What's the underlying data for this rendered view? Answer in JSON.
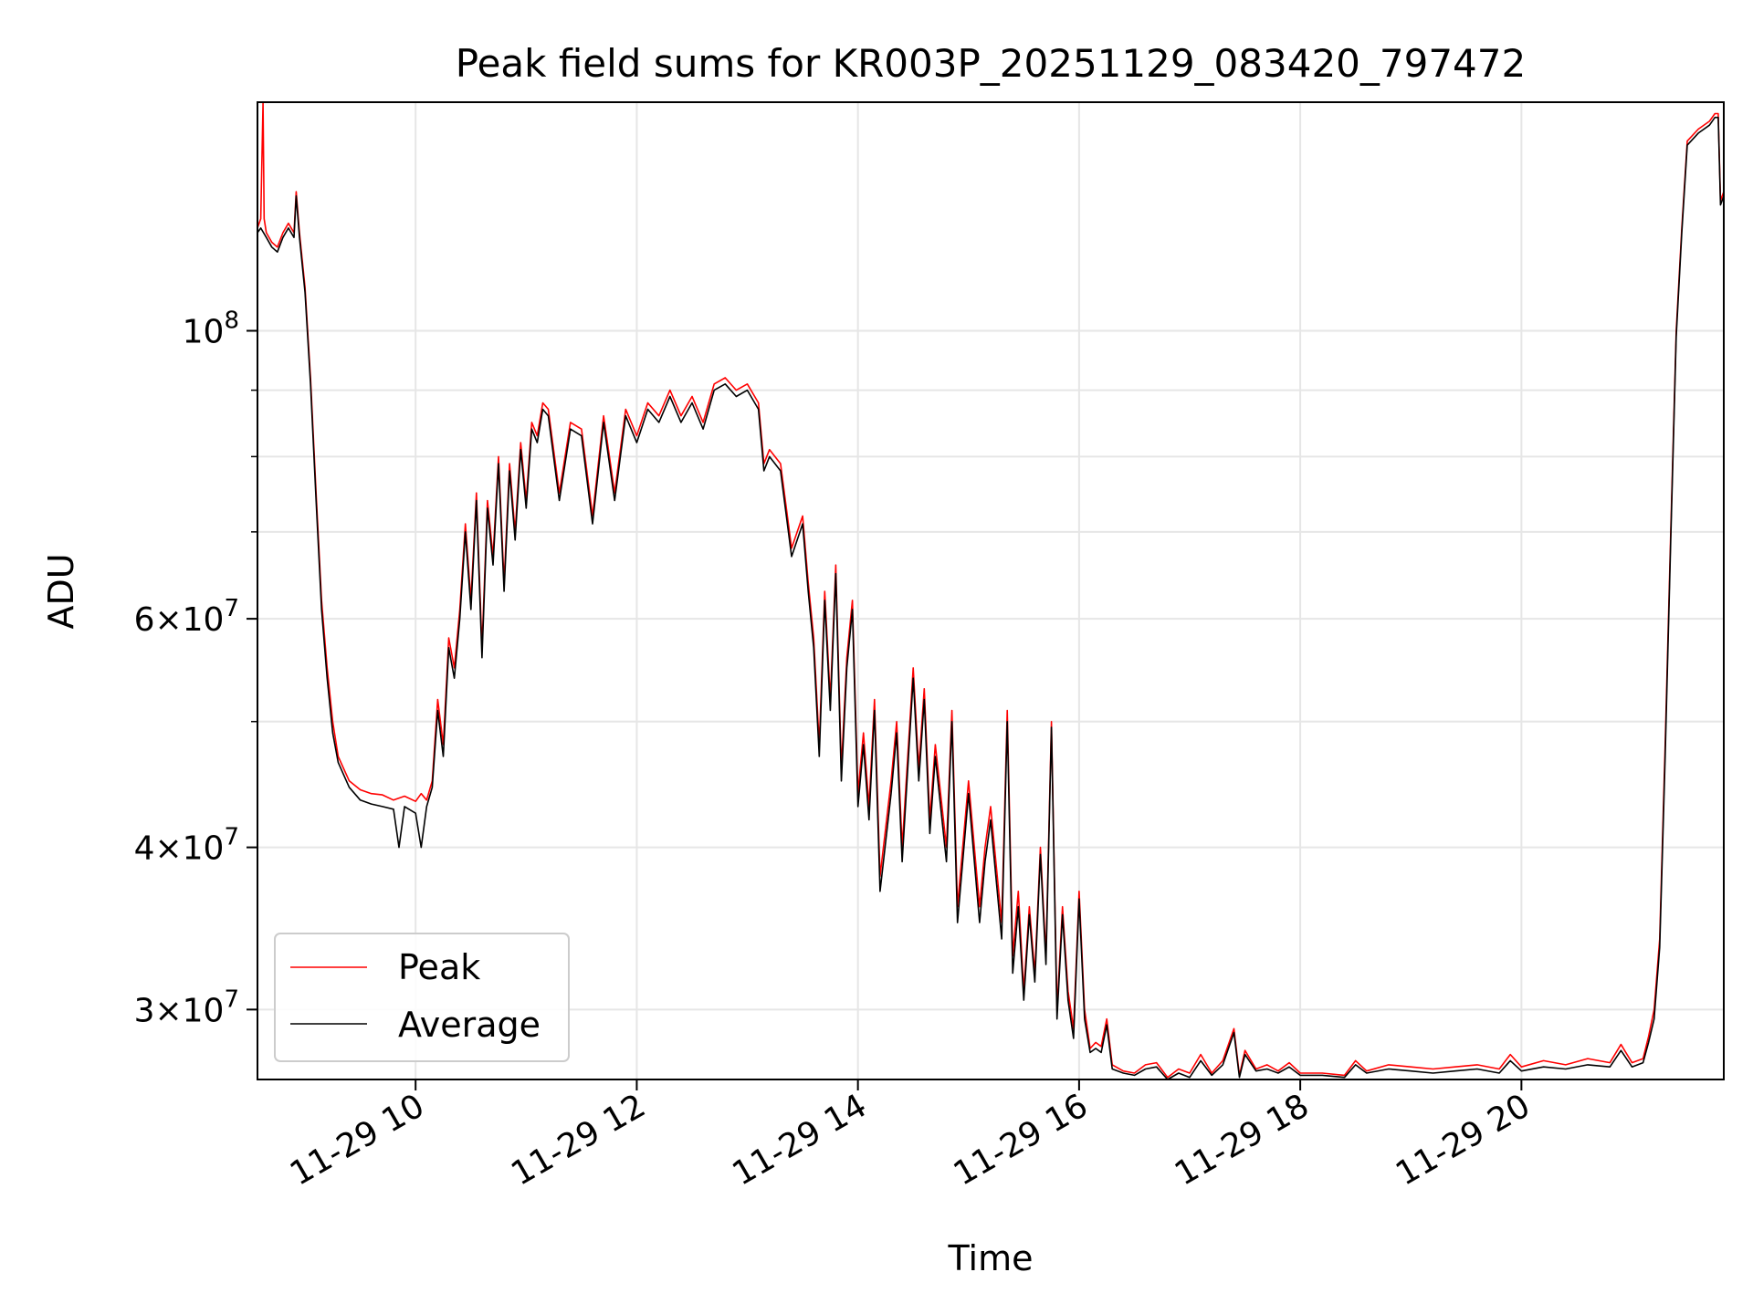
{
  "chart_data": {
    "type": "line",
    "title": "Peak field sums for KR003P_20251129_083420_797472",
    "xlabel": "Time",
    "ylabel": "ADU",
    "yscale": "log",
    "grid": true,
    "legend_position": "lower-left",
    "xlim_hours": [
      8.57,
      21.83
    ],
    "ylim": [
      26500000,
      150000000
    ],
    "x_ticks": [
      {
        "hour": 10,
        "label": "11-29 10"
      },
      {
        "hour": 12,
        "label": "11-29 12"
      },
      {
        "hour": 14,
        "label": "11-29 14"
      },
      {
        "hour": 16,
        "label": "11-29 16"
      },
      {
        "hour": 18,
        "label": "11-29 18"
      },
      {
        "hour": 20,
        "label": "11-29 20"
      }
    ],
    "y_ticks": [
      {
        "value": 30000000,
        "base": "3",
        "exponent": "7"
      },
      {
        "value": 40000000,
        "base": "4",
        "exponent": "7"
      },
      {
        "value": 60000000,
        "base": "6",
        "exponent": "7"
      },
      {
        "value": 100000000,
        "base": "",
        "exponent": "8"
      }
    ],
    "y_minor_ticks": [
      50000000,
      70000000,
      80000000,
      90000000
    ],
    "series": [
      {
        "name": "Peak",
        "color": "#ff0000",
        "x_hours": [
          8.57,
          8.6,
          8.62,
          8.63,
          8.65,
          8.7,
          8.75,
          8.8,
          8.85,
          8.9,
          8.92,
          8.95,
          9.0,
          9.05,
          9.1,
          9.15,
          9.2,
          9.25,
          9.3,
          9.4,
          9.5,
          9.6,
          9.7,
          9.8,
          9.9,
          10.0,
          10.05,
          10.1,
          10.15,
          10.2,
          10.25,
          10.3,
          10.35,
          10.4,
          10.45,
          10.5,
          10.55,
          10.6,
          10.65,
          10.7,
          10.75,
          10.8,
          10.85,
          10.9,
          10.95,
          11.0,
          11.05,
          11.1,
          11.15,
          11.2,
          11.3,
          11.4,
          11.5,
          11.6,
          11.7,
          11.8,
          11.9,
          12.0,
          12.1,
          12.2,
          12.3,
          12.4,
          12.5,
          12.6,
          12.7,
          12.8,
          12.9,
          13.0,
          13.1,
          13.15,
          13.2,
          13.3,
          13.4,
          13.5,
          13.55,
          13.6,
          13.65,
          13.7,
          13.75,
          13.8,
          13.85,
          13.9,
          13.95,
          14.0,
          14.05,
          14.1,
          14.15,
          14.2,
          14.3,
          14.35,
          14.4,
          14.5,
          14.55,
          14.6,
          14.65,
          14.7,
          14.8,
          14.85,
          14.9,
          15.0,
          15.1,
          15.15,
          15.2,
          15.3,
          15.35,
          15.4,
          15.45,
          15.5,
          15.55,
          15.6,
          15.65,
          15.7,
          15.75,
          15.8,
          15.85,
          15.9,
          15.95,
          16.0,
          16.05,
          16.1,
          16.15,
          16.2,
          16.25,
          16.3,
          16.4,
          16.5,
          16.6,
          16.7,
          16.8,
          16.9,
          17.0,
          17.1,
          17.2,
          17.3,
          17.4,
          17.45,
          17.5,
          17.6,
          17.7,
          17.8,
          17.9,
          18.0,
          18.2,
          18.4,
          18.5,
          18.6,
          18.8,
          19.0,
          19.2,
          19.4,
          19.6,
          19.8,
          19.9,
          20.0,
          20.2,
          20.4,
          20.6,
          20.8,
          20.9,
          21.0,
          21.1,
          21.15,
          21.2,
          21.25,
          21.3,
          21.35,
          21.4,
          21.45,
          21.5,
          21.6,
          21.7,
          21.75,
          21.78,
          21.8,
          21.83
        ],
        "values": [
          120000000,
          122000000,
          150000000,
          122000000,
          119000000,
          117000000,
          116000000,
          119000000,
          121000000,
          119000000,
          128000000,
          119000000,
          108000000,
          92000000,
          75000000,
          62000000,
          55000000,
          50000000,
          47000000,
          45000000,
          44300000,
          44000000,
          43900000,
          43500000,
          43800000,
          43400000,
          44000000,
          43500000,
          45000000,
          52000000,
          48000000,
          58000000,
          55000000,
          61000000,
          71000000,
          62000000,
          75000000,
          57000000,
          74000000,
          67000000,
          80000000,
          64000000,
          79000000,
          70000000,
          82000000,
          74000000,
          85000000,
          83000000,
          88000000,
          87000000,
          75000000,
          85000000,
          84000000,
          72000000,
          86000000,
          75000000,
          87000000,
          83000000,
          88000000,
          86000000,
          90000000,
          86000000,
          89000000,
          85000000,
          91000000,
          92000000,
          90000000,
          91000000,
          88000000,
          79000000,
          81000000,
          79000000,
          68000000,
          72000000,
          64000000,
          58000000,
          48000000,
          63000000,
          52000000,
          66000000,
          46000000,
          56000000,
          62000000,
          44000000,
          49000000,
          43000000,
          52000000,
          38000000,
          45000000,
          50000000,
          40000000,
          55000000,
          46000000,
          53000000,
          42000000,
          48000000,
          40000000,
          51000000,
          36000000,
          45000000,
          36000000,
          40000000,
          43000000,
          35000000,
          51000000,
          33000000,
          37000000,
          31000000,
          36000000,
          32000000,
          40000000,
          33000000,
          50000000,
          30000000,
          36000000,
          31000000,
          29000000,
          37000000,
          30000000,
          28000000,
          28300000,
          28100000,
          29500000,
          27200000,
          26900000,
          26800000,
          27200000,
          27300000,
          26600000,
          27000000,
          26800000,
          27700000,
          26800000,
          27400000,
          29000000,
          26700000,
          27900000,
          27000000,
          27200000,
          26900000,
          27300000,
          26800000,
          26800000,
          26700000,
          27400000,
          26900000,
          27200000,
          27100000,
          27000000,
          27100000,
          27200000,
          27000000,
          27700000,
          27100000,
          27400000,
          27200000,
          27500000,
          27300000,
          28200000,
          27300000,
          27500000,
          28600000,
          30000000,
          34000000,
          48000000,
          70000000,
          100000000,
          120000000,
          140000000,
          143000000,
          145000000,
          147000000,
          147000000,
          126000000,
          128000000
        ]
      },
      {
        "name": "Average",
        "color": "#000000",
        "x_hours": [
          8.57,
          8.6,
          8.65,
          8.7,
          8.75,
          8.8,
          8.85,
          8.9,
          8.92,
          8.95,
          9.0,
          9.05,
          9.1,
          9.15,
          9.2,
          9.25,
          9.3,
          9.4,
          9.5,
          9.6,
          9.7,
          9.8,
          9.85,
          9.9,
          10.0,
          10.05,
          10.1,
          10.15,
          10.2,
          10.25,
          10.3,
          10.35,
          10.4,
          10.45,
          10.5,
          10.55,
          10.6,
          10.65,
          10.7,
          10.75,
          10.8,
          10.85,
          10.9,
          10.95,
          11.0,
          11.05,
          11.1,
          11.15,
          11.2,
          11.3,
          11.4,
          11.5,
          11.6,
          11.7,
          11.8,
          11.9,
          12.0,
          12.1,
          12.2,
          12.3,
          12.4,
          12.5,
          12.6,
          12.7,
          12.8,
          12.9,
          13.0,
          13.1,
          13.15,
          13.2,
          13.3,
          13.4,
          13.5,
          13.55,
          13.6,
          13.65,
          13.7,
          13.75,
          13.8,
          13.85,
          13.9,
          13.95,
          14.0,
          14.05,
          14.1,
          14.15,
          14.2,
          14.3,
          14.35,
          14.4,
          14.5,
          14.55,
          14.6,
          14.65,
          14.7,
          14.8,
          14.85,
          14.9,
          15.0,
          15.1,
          15.15,
          15.2,
          15.3,
          15.35,
          15.4,
          15.45,
          15.5,
          15.55,
          15.6,
          15.65,
          15.7,
          15.75,
          15.8,
          15.85,
          15.9,
          15.95,
          16.0,
          16.05,
          16.1,
          16.15,
          16.2,
          16.25,
          16.3,
          16.4,
          16.5,
          16.6,
          16.7,
          16.8,
          16.9,
          17.0,
          17.1,
          17.2,
          17.3,
          17.4,
          17.45,
          17.5,
          17.6,
          17.7,
          17.8,
          17.9,
          18.0,
          18.2,
          18.4,
          18.5,
          18.6,
          18.8,
          19.0,
          19.2,
          19.4,
          19.6,
          19.8,
          19.9,
          20.0,
          20.2,
          20.4,
          20.6,
          20.8,
          20.9,
          21.0,
          21.1,
          21.15,
          21.2,
          21.25,
          21.3,
          21.35,
          21.4,
          21.45,
          21.5,
          21.6,
          21.7,
          21.75,
          21.78,
          21.8,
          21.83
        ],
        "values": [
          119000000,
          120000000,
          118000000,
          116000000,
          115000000,
          118000000,
          120000000,
          118000000,
          127000000,
          118000000,
          107000000,
          91000000,
          74000000,
          61000000,
          54000000,
          49000000,
          46500000,
          44500000,
          43500000,
          43200000,
          43000000,
          42800000,
          40000000,
          43000000,
          42500000,
          40000000,
          43000000,
          44500000,
          51000000,
          47000000,
          57000000,
          54000000,
          60000000,
          70000000,
          61000000,
          74000000,
          56000000,
          73000000,
          66000000,
          79000000,
          63000000,
          78000000,
          69000000,
          81000000,
          73000000,
          84000000,
          82000000,
          87000000,
          86000000,
          74000000,
          84000000,
          83000000,
          71000000,
          85000000,
          74000000,
          86000000,
          82000000,
          87000000,
          85000000,
          89000000,
          85000000,
          88000000,
          84000000,
          90000000,
          91000000,
          89000000,
          90000000,
          87000000,
          78000000,
          80000000,
          78000000,
          67000000,
          71000000,
          63000000,
          57000000,
          47000000,
          62000000,
          51000000,
          65000000,
          45000000,
          55000000,
          61000000,
          43000000,
          48000000,
          42000000,
          51000000,
          37000000,
          44000000,
          49000000,
          39000000,
          54000000,
          45000000,
          52000000,
          41000000,
          47000000,
          39000000,
          50000000,
          35000000,
          44000000,
          35000000,
          39000000,
          42000000,
          34000000,
          50000000,
          32000000,
          36000000,
          30500000,
          35500000,
          31500000,
          39500000,
          32500000,
          49500000,
          29500000,
          35500000,
          30500000,
          28500000,
          36500000,
          29500000,
          27800000,
          28000000,
          27800000,
          29200000,
          27000000,
          26800000,
          26700000,
          27000000,
          27100000,
          26500000,
          26800000,
          26600000,
          27400000,
          26700000,
          27200000,
          28800000,
          26600000,
          27700000,
          26900000,
          27000000,
          26800000,
          27100000,
          26700000,
          26700000,
          26600000,
          27200000,
          26800000,
          27000000,
          26900000,
          26800000,
          26900000,
          27000000,
          26800000,
          27400000,
          26900000,
          27100000,
          27000000,
          27200000,
          27100000,
          27900000,
          27100000,
          27300000,
          28300000,
          29500000,
          33500000,
          47000000,
          69000000,
          99000000,
          119000000,
          139000000,
          142000000,
          144000000,
          146000000,
          146000000,
          125000000,
          127000000
        ]
      }
    ]
  }
}
